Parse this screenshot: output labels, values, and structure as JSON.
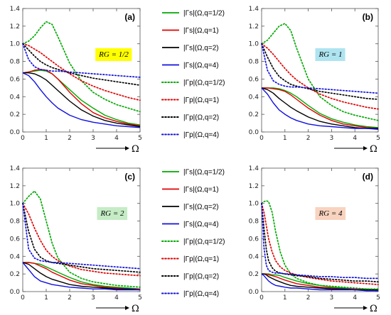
{
  "legend": [
    {
      "label": "|Γs|(Ω,q=1/2)",
      "color": "#00aa00",
      "dash": false
    },
    {
      "label": "|Γs|(Ω,q=1)",
      "color": "#e00000",
      "dash": false
    },
    {
      "label": "|Γs|(Ω,q=2)",
      "color": "#000000",
      "dash": false
    },
    {
      "label": "|Γs|(Ω,q=4)",
      "color": "#1010e0",
      "dash": false
    },
    {
      "label": "|Γp|(Ω,q=1/2)",
      "color": "#00aa00",
      "dash": true
    },
    {
      "label": "|Γp|(Ω,q=1)",
      "color": "#e00000",
      "dash": true
    },
    {
      "label": "|Γp|(Ω,q=2)",
      "color": "#000000",
      "dash": true
    },
    {
      "label": "|Γp|(Ω,q=4)",
      "color": "#1010e0",
      "dash": true
    }
  ],
  "xaxis_label": "Ω",
  "chart_data": [
    {
      "type": "line",
      "panel": "(a)",
      "annotation": "RG = 1/2",
      "annotation_bg": "#ffff00",
      "xlim": [
        0,
        5
      ],
      "ylim": [
        0,
        1.4
      ],
      "xticks": [
        0,
        1,
        2,
        3,
        4,
        5
      ],
      "yticks": [
        0.0,
        0.2,
        0.4,
        0.6,
        0.8,
        1.0,
        1.2,
        1.4
      ],
      "x": [
        0,
        0.25,
        0.5,
        0.75,
        1,
        1.25,
        1.5,
        2,
        2.5,
        3,
        3.5,
        4,
        4.5,
        5
      ],
      "series": [
        {
          "name": "|Γs|(Ω,q=1/2)",
          "values": [
            0.67,
            0.68,
            0.69,
            0.7,
            0.69,
            0.66,
            0.6,
            0.48,
            0.36,
            0.27,
            0.19,
            0.14,
            0.1,
            0.08
          ]
        },
        {
          "name": "|Γs|(Ω,q=1)",
          "values": [
            0.67,
            0.68,
            0.7,
            0.71,
            0.7,
            0.66,
            0.6,
            0.45,
            0.32,
            0.22,
            0.16,
            0.12,
            0.09,
            0.07
          ]
        },
        {
          "name": "|Γs|(Ω,q=2)",
          "values": [
            0.67,
            0.67,
            0.66,
            0.63,
            0.59,
            0.53,
            0.47,
            0.35,
            0.25,
            0.18,
            0.13,
            0.1,
            0.08,
            0.06
          ]
        },
        {
          "name": "|Γs|(Ω,q=4)",
          "values": [
            0.67,
            0.64,
            0.57,
            0.48,
            0.4,
            0.33,
            0.27,
            0.19,
            0.14,
            0.11,
            0.09,
            0.07,
            0.06,
            0.05
          ]
        },
        {
          "name": "|Γp|(Ω,q=1/2)",
          "values": [
            1.0,
            1.03,
            1.09,
            1.18,
            1.25,
            1.22,
            1.08,
            0.78,
            0.58,
            0.45,
            0.37,
            0.31,
            0.27,
            0.23
          ]
        },
        {
          "name": "|Γp|(Ω,q=1)",
          "values": [
            1.0,
            0.98,
            0.94,
            0.9,
            0.85,
            0.8,
            0.75,
            0.66,
            0.58,
            0.52,
            0.47,
            0.43,
            0.39,
            0.36
          ]
        },
        {
          "name": "|Γp|(Ω,q=2)",
          "values": [
            1.0,
            0.93,
            0.86,
            0.8,
            0.76,
            0.73,
            0.71,
            0.67,
            0.64,
            0.61,
            0.59,
            0.57,
            0.55,
            0.53
          ]
        },
        {
          "name": "|Γp|(Ω,q=4)",
          "values": [
            1.0,
            0.82,
            0.74,
            0.71,
            0.7,
            0.69,
            0.69,
            0.68,
            0.67,
            0.66,
            0.65,
            0.64,
            0.63,
            0.62
          ]
        }
      ]
    },
    {
      "type": "line",
      "panel": "(b)",
      "annotation": "RG = 1",
      "annotation_bg": "#aee4f0",
      "xlim": [
        0,
        5
      ],
      "ylim": [
        0,
        1.4
      ],
      "xticks": [
        0,
        1,
        2,
        3,
        4,
        5
      ],
      "yticks": [
        0.0,
        0.2,
        0.4,
        0.6,
        0.8,
        1.0,
        1.2,
        1.4
      ],
      "x": [
        0,
        0.25,
        0.5,
        0.75,
        1,
        1.25,
        1.5,
        2,
        2.5,
        3,
        3.5,
        4,
        4.5,
        5
      ],
      "series": [
        {
          "name": "|Γs|(Ω,q=1/2)",
          "values": [
            0.5,
            0.5,
            0.5,
            0.49,
            0.47,
            0.44,
            0.4,
            0.3,
            0.21,
            0.15,
            0.11,
            0.08,
            0.06,
            0.05
          ]
        },
        {
          "name": "|Γs|(Ω,q=1)",
          "values": [
            0.5,
            0.5,
            0.49,
            0.48,
            0.46,
            0.42,
            0.37,
            0.27,
            0.19,
            0.13,
            0.09,
            0.07,
            0.05,
            0.04
          ]
        },
        {
          "name": "|Γs|(Ω,q=2)",
          "values": [
            0.5,
            0.48,
            0.44,
            0.38,
            0.33,
            0.28,
            0.24,
            0.17,
            0.12,
            0.09,
            0.07,
            0.05,
            0.04,
            0.04
          ]
        },
        {
          "name": "|Γs|(Ω,q=4)",
          "values": [
            0.5,
            0.43,
            0.33,
            0.25,
            0.2,
            0.16,
            0.13,
            0.09,
            0.07,
            0.06,
            0.05,
            0.04,
            0.04,
            0.03
          ]
        },
        {
          "name": "|Γp|(Ω,q=1/2)",
          "values": [
            1.0,
            1.04,
            1.12,
            1.2,
            1.23,
            1.15,
            0.95,
            0.6,
            0.4,
            0.3,
            0.23,
            0.19,
            0.16,
            0.13
          ]
        },
        {
          "name": "|Γp|(Ω,q=1)",
          "values": [
            1.0,
            0.95,
            0.88,
            0.8,
            0.72,
            0.65,
            0.59,
            0.5,
            0.43,
            0.38,
            0.34,
            0.31,
            0.28,
            0.26
          ]
        },
        {
          "name": "|Γp|(Ω,q=2)",
          "values": [
            1.0,
            0.85,
            0.72,
            0.63,
            0.58,
            0.54,
            0.52,
            0.49,
            0.46,
            0.44,
            0.42,
            0.4,
            0.38,
            0.37
          ]
        },
        {
          "name": "|Γp|(Ω,q=4)",
          "values": [
            1.0,
            0.7,
            0.58,
            0.54,
            0.52,
            0.51,
            0.51,
            0.5,
            0.49,
            0.48,
            0.47,
            0.46,
            0.45,
            0.44
          ]
        }
      ]
    },
    {
      "type": "line",
      "panel": "(c)",
      "annotation": "RG = 2",
      "annotation_bg": "#c5ecc5",
      "xlim": [
        0,
        5
      ],
      "ylim": [
        0,
        1.4
      ],
      "xticks": [
        0,
        1,
        2,
        3,
        4,
        5
      ],
      "yticks": [
        0.0,
        0.2,
        0.4,
        0.6,
        0.8,
        1.0,
        1.2,
        1.4
      ],
      "x": [
        0,
        0.25,
        0.5,
        0.75,
        1,
        1.25,
        1.5,
        2,
        2.5,
        3,
        3.5,
        4,
        4.5,
        5
      ],
      "series": [
        {
          "name": "|Γs|(Ω,q=1/2)",
          "values": [
            0.33,
            0.33,
            0.32,
            0.31,
            0.28,
            0.25,
            0.22,
            0.16,
            0.11,
            0.08,
            0.06,
            0.05,
            0.04,
            0.03
          ]
        },
        {
          "name": "|Γs|(Ω,q=1)",
          "values": [
            0.33,
            0.33,
            0.32,
            0.29,
            0.26,
            0.22,
            0.19,
            0.13,
            0.09,
            0.07,
            0.05,
            0.04,
            0.03,
            0.03
          ]
        },
        {
          "name": "|Γs|(Ω,q=2)",
          "values": [
            0.33,
            0.31,
            0.26,
            0.21,
            0.17,
            0.14,
            0.12,
            0.08,
            0.06,
            0.05,
            0.04,
            0.03,
            0.03,
            0.02
          ]
        },
        {
          "name": "|Γs|(Ω,q=4)",
          "values": [
            0.33,
            0.25,
            0.17,
            0.12,
            0.1,
            0.08,
            0.07,
            0.05,
            0.04,
            0.03,
            0.03,
            0.02,
            0.02,
            0.02
          ]
        },
        {
          "name": "|Γp|(Ω,q=1/2)",
          "values": [
            1.0,
            1.08,
            1.14,
            1.05,
            0.8,
            0.55,
            0.38,
            0.22,
            0.15,
            0.11,
            0.09,
            0.07,
            0.06,
            0.05
          ]
        },
        {
          "name": "|Γp|(Ω,q=1)",
          "values": [
            1.0,
            0.88,
            0.72,
            0.58,
            0.47,
            0.4,
            0.35,
            0.29,
            0.25,
            0.23,
            0.21,
            0.2,
            0.19,
            0.18
          ]
        },
        {
          "name": "|Γp|(Ω,q=2)",
          "values": [
            1.0,
            0.68,
            0.48,
            0.39,
            0.35,
            0.33,
            0.32,
            0.3,
            0.28,
            0.26,
            0.25,
            0.24,
            0.23,
            0.22
          ]
        },
        {
          "name": "|Γp|(Ω,q=4)",
          "values": [
            1.0,
            0.48,
            0.38,
            0.35,
            0.34,
            0.33,
            0.33,
            0.32,
            0.31,
            0.3,
            0.29,
            0.28,
            0.27,
            0.26
          ]
        }
      ]
    },
    {
      "type": "line",
      "panel": "(d)",
      "annotation": "RG = 4",
      "annotation_bg": "#f8d3bf",
      "xlim": [
        0,
        5
      ],
      "ylim": [
        0,
        1.4
      ],
      "xticks": [
        0,
        1,
        2,
        3,
        4,
        5
      ],
      "yticks": [
        0.0,
        0.2,
        0.4,
        0.6,
        0.8,
        1.0,
        1.2,
        1.4
      ],
      "x": [
        0,
        0.1,
        0.2,
        0.3,
        0.45,
        0.6,
        0.8,
        1,
        1.25,
        1.5,
        2,
        2.5,
        3,
        3.5,
        4,
        4.5,
        5
      ],
      "series": [
        {
          "name": "|Γs|(Ω,q=1/2)",
          "values": [
            0.2,
            0.2,
            0.2,
            0.2,
            0.19,
            0.19,
            0.18,
            0.16,
            0.14,
            0.12,
            0.09,
            0.07,
            0.05,
            0.04,
            0.03,
            0.03,
            0.02
          ]
        },
        {
          "name": "|Γs|(Ω,q=1)",
          "values": [
            0.2,
            0.2,
            0.2,
            0.19,
            0.18,
            0.17,
            0.15,
            0.13,
            0.11,
            0.09,
            0.07,
            0.05,
            0.04,
            0.03,
            0.03,
            0.02,
            0.02
          ]
        },
        {
          "name": "|Γs|(Ω,q=2)",
          "values": [
            0.2,
            0.2,
            0.19,
            0.17,
            0.15,
            0.13,
            0.11,
            0.09,
            0.07,
            0.06,
            0.05,
            0.04,
            0.03,
            0.03,
            0.02,
            0.02,
            0.02
          ]
        },
        {
          "name": "|Γs|(Ω,q=4)",
          "values": [
            0.2,
            0.18,
            0.15,
            0.12,
            0.09,
            0.07,
            0.06,
            0.05,
            0.04,
            0.04,
            0.03,
            0.02,
            0.02,
            0.02,
            0.02,
            0.01,
            0.01
          ]
        },
        {
          "name": "|Γp|(Ω,q=1/2)",
          "values": [
            1.0,
            1.02,
            1.03,
            1.02,
            0.9,
            0.68,
            0.45,
            0.3,
            0.2,
            0.15,
            0.1,
            0.07,
            0.06,
            0.05,
            0.04,
            0.03,
            0.03
          ]
        },
        {
          "name": "|Γp|(Ω,q=1)",
          "values": [
            1.0,
            0.9,
            0.75,
            0.6,
            0.45,
            0.35,
            0.28,
            0.24,
            0.21,
            0.19,
            0.16,
            0.14,
            0.12,
            0.11,
            0.1,
            0.09,
            0.08
          ]
        },
        {
          "name": "|Γp|(Ω,q=2)",
          "values": [
            1.0,
            0.72,
            0.48,
            0.35,
            0.27,
            0.23,
            0.21,
            0.2,
            0.19,
            0.18,
            0.17,
            0.15,
            0.14,
            0.13,
            0.12,
            0.12,
            0.11
          ]
        },
        {
          "name": "|Γp|(Ω,q=4)",
          "values": [
            1.0,
            0.5,
            0.3,
            0.24,
            0.22,
            0.21,
            0.21,
            0.2,
            0.2,
            0.19,
            0.18,
            0.17,
            0.17,
            0.16,
            0.16,
            0.15,
            0.15
          ]
        }
      ]
    }
  ]
}
